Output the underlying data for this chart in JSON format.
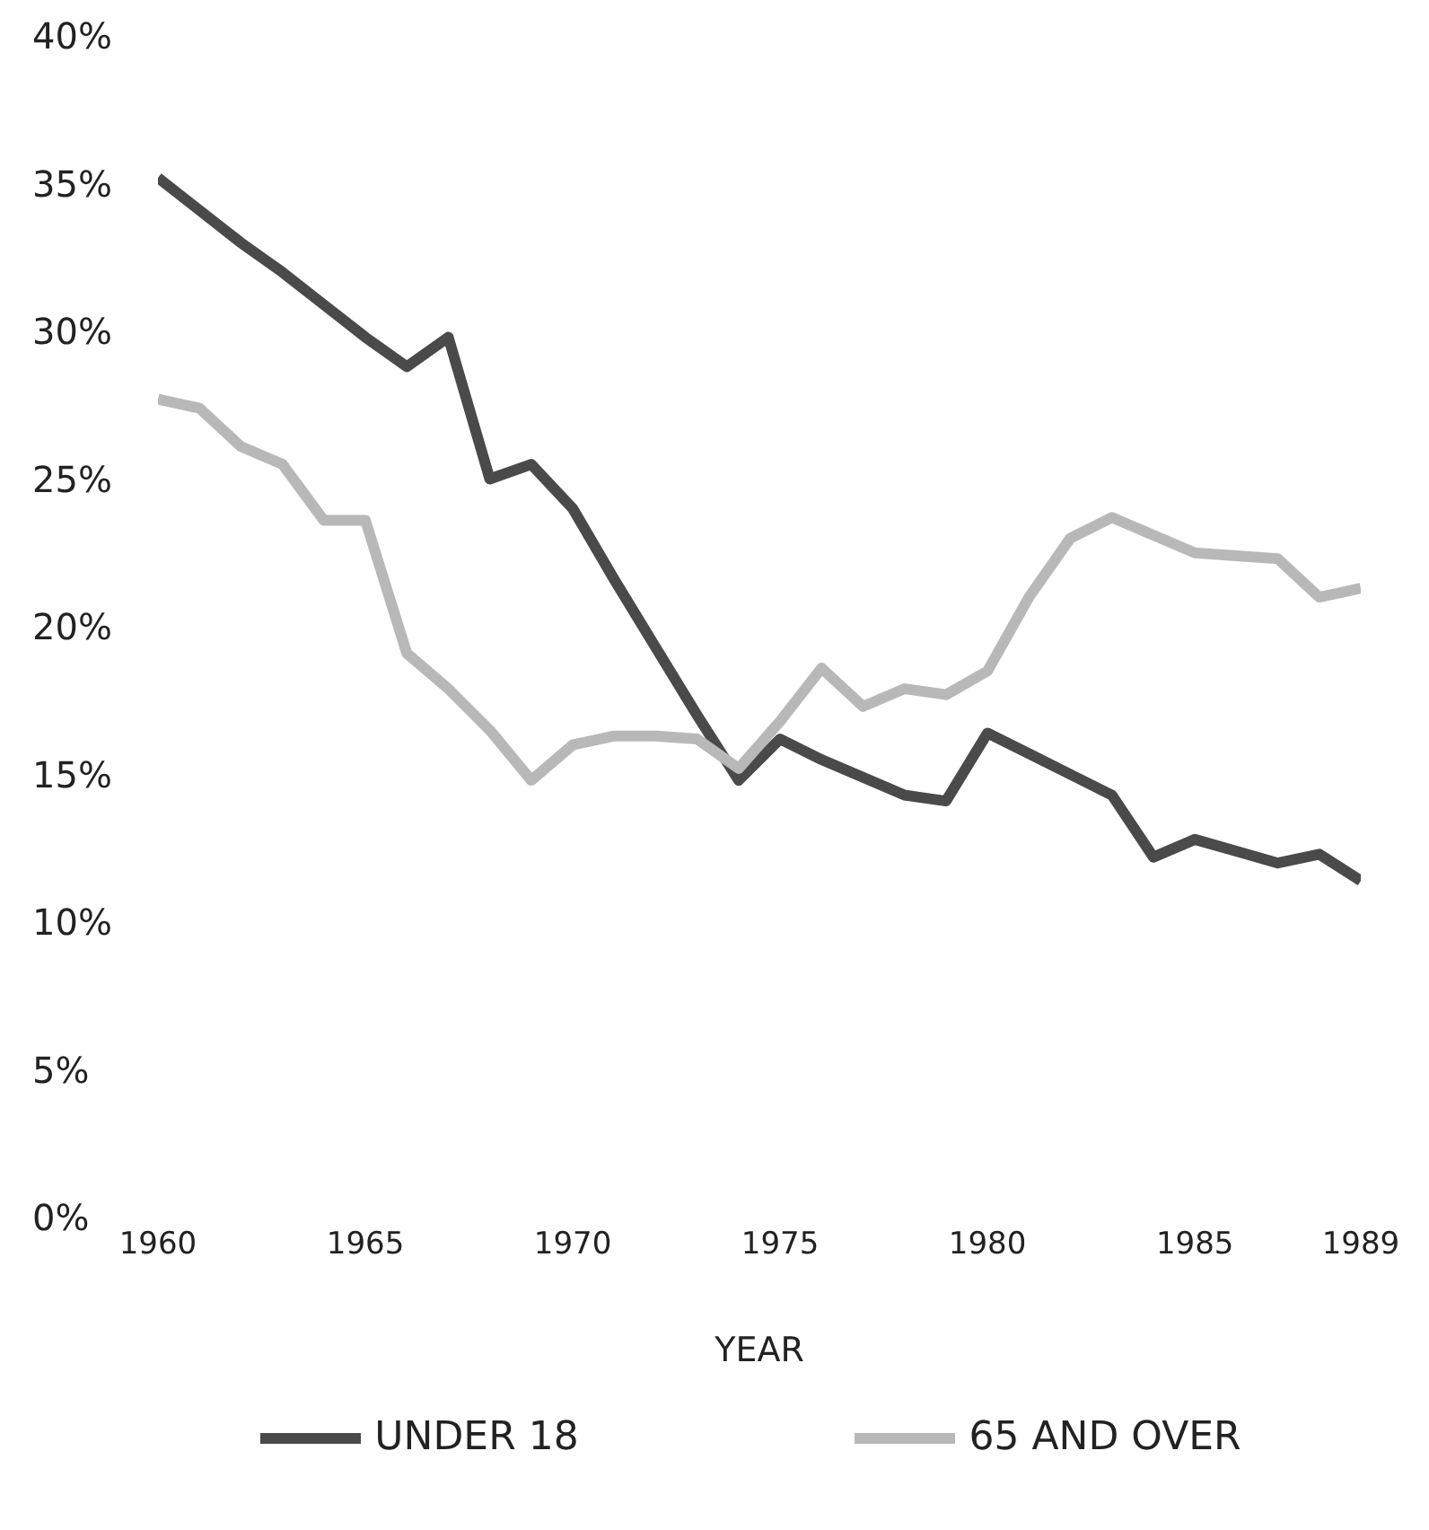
{
  "chart_data": {
    "type": "line",
    "xlabel": "YEAR",
    "x": [
      1960,
      1961,
      1962,
      1963,
      1964,
      1965,
      1966,
      1967,
      1968,
      1969,
      1970,
      1971,
      1972,
      1973,
      1974,
      1975,
      1976,
      1977,
      1978,
      1979,
      1980,
      1981,
      1982,
      1983,
      1984,
      1985,
      1986,
      1987,
      1988,
      1989
    ],
    "series": [
      {
        "name": "UNDER 18",
        "color": "#4a4a4a",
        "values": [
          35.2,
          34.1,
          33.0,
          32.0,
          30.9,
          29.8,
          28.8,
          29.8,
          25.0,
          25.5,
          24.0,
          21.6,
          19.3,
          17.0,
          14.8,
          16.2,
          15.5,
          14.9,
          14.3,
          14.1,
          16.4,
          15.7,
          15.0,
          14.3,
          12.2,
          12.8,
          12.4,
          12.0,
          12.3,
          11.4
        ]
      },
      {
        "name": "65 AND OVER",
        "color": "#b8b8b8",
        "values": [
          27.7,
          27.4,
          26.1,
          25.5,
          23.6,
          23.6,
          19.1,
          17.9,
          16.5,
          14.8,
          16.0,
          16.3,
          16.3,
          16.2,
          15.2,
          16.8,
          18.6,
          17.3,
          17.9,
          17.7,
          18.5,
          21.0,
          23.0,
          23.7,
          23.1,
          22.5,
          22.4,
          22.3,
          21.0,
          21.3
        ]
      }
    ],
    "xlim": [
      1960,
      1989
    ],
    "xticks": [
      1960,
      1965,
      1970,
      1975,
      1980,
      1985,
      1989
    ],
    "ylim": [
      0,
      40
    ],
    "yticks": [
      {
        "value": 0,
        "label": "0%"
      },
      {
        "value": 5,
        "label": "5%"
      },
      {
        "value": 10,
        "label": "10%"
      },
      {
        "value": 15,
        "label": "15%"
      },
      {
        "value": 20,
        "label": "20%"
      },
      {
        "value": 25,
        "label": "25%"
      },
      {
        "value": 30,
        "label": "30%"
      },
      {
        "value": 35,
        "label": "35%"
      },
      {
        "value": 40,
        "label": "40%"
      }
    ],
    "grid": false,
    "legend": "bottom",
    "marker": "none",
    "line_style": "solid"
  }
}
